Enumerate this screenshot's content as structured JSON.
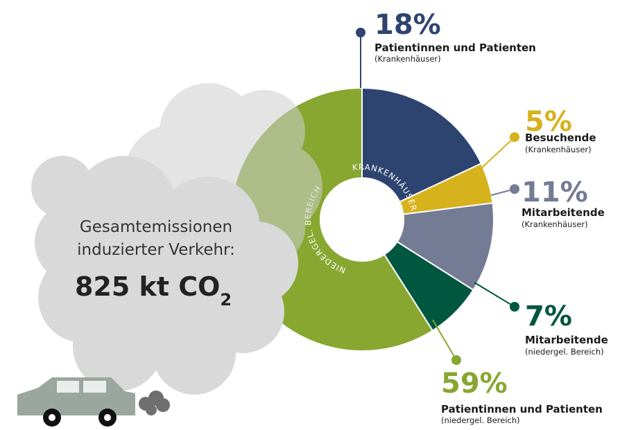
{
  "chart_data": {
    "type": "pie",
    "values": [
      18,
      5,
      11,
      7,
      59
    ],
    "value_labels": [
      "18%",
      "5%",
      "11%",
      "7%",
      "59%"
    ],
    "labels": [
      "Patientinnen und Patienten",
      "Besuchende",
      "Mitarbeitende",
      "Mitarbeitende",
      "Patientinnen und Patienten"
    ],
    "sublabels": [
      "(Krankenhäuser)",
      "(Krankenhäuser)",
      "(Krankenhäuser)",
      "(niedergel. Bereich)",
      "(niedergel. Bereich)"
    ],
    "colors": [
      "#2e4470",
      "#d6b21c",
      "#747b95",
      "#00573f",
      "#87a731"
    ],
    "groups": [
      "KRANKENHÄUSER",
      "NIEDERGEL. BEREICH"
    ]
  },
  "cloud": {
    "lines": [
      "Gesamtemissionen",
      "induzierter Verkehr:"
    ],
    "total": "825 kt CO",
    "subscript": "2"
  }
}
